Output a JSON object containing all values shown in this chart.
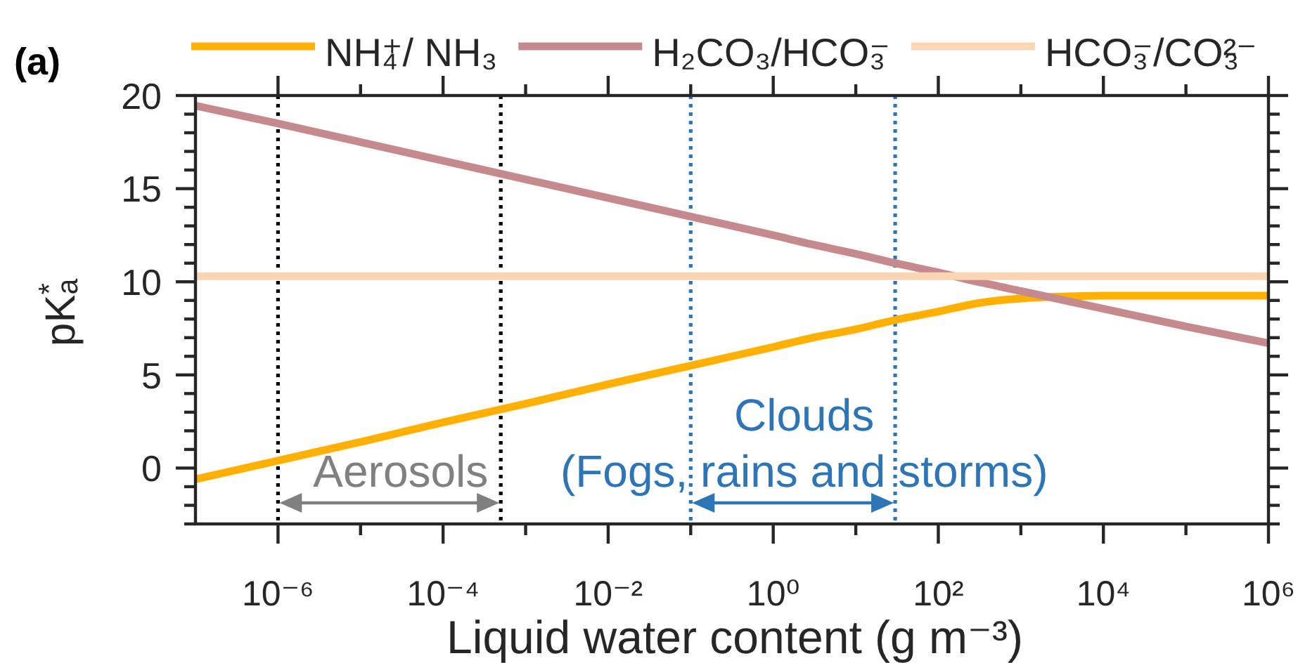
{
  "chart_data": {
    "type": "line",
    "title": "(a)",
    "xlabel": "Liquid water content (g m⁻³)",
    "ylabel": "pKₐ$^{*}$",
    "x": [
      1e-07,
      1e-06,
      1e-05,
      0.0001,
      0.001,
      0.01,
      0.1,
      1,
      3,
      10,
      30,
      100,
      300,
      1000,
      3000,
      10000,
      100000,
      1000000
    ],
    "series": [
      {
        "name": "NH₄⁺/ NH₃",
        "color": "#ffb000",
        "values": [
          -0.6,
          0.4,
          1.4,
          2.45,
          3.45,
          4.5,
          5.5,
          6.5,
          7.0,
          7.45,
          7.95,
          8.4,
          8.85,
          9.1,
          9.2,
          9.25,
          9.25,
          9.25
        ]
      },
      {
        "name": "H₂CO₃/HCO₃⁻",
        "color": "#c48a8e",
        "values": [
          19.45,
          18.5,
          17.5,
          16.5,
          15.5,
          14.5,
          13.5,
          12.5,
          12.0,
          11.5,
          11.0,
          10.5,
          10.0,
          9.5,
          9.05,
          8.55,
          7.6,
          6.7
        ]
      },
      {
        "name": "HCO₃⁻/CO₃²⁻",
        "color": "#fcd5b5",
        "x": [
          1e-07,
          1000000
        ],
        "values": [
          10.3,
          10.3
        ]
      }
    ],
    "log": "x",
    "xlim": [
      1e-07,
      1000000
    ],
    "xticks": [
      {
        "value": 1e-06,
        "label": "10⁻⁶"
      },
      {
        "value": 1e-05,
        "label": null
      },
      {
        "value": 0.0001,
        "label": "10⁻⁴"
      },
      {
        "value": 0.001,
        "label": null
      },
      {
        "value": 0.01,
        "label": "10⁻²"
      },
      {
        "value": 0.1,
        "label": null
      },
      {
        "value": 1,
        "label": "10⁰"
      },
      {
        "value": 10,
        "label": null
      },
      {
        "value": 100,
        "label": "10²"
      },
      {
        "value": 1000,
        "label": null
      },
      {
        "value": 10000,
        "label": "10⁴"
      },
      {
        "value": 100000,
        "label": null
      },
      {
        "value": 1000000,
        "label": "10⁶"
      }
    ],
    "ylim": [
      -3,
      20
    ],
    "yticks": [
      {
        "value": -3,
        "label": null
      },
      {
        "value": -2,
        "label": null
      },
      {
        "value": -1,
        "label": null
      },
      0,
      {
        "value": 1,
        "label": null
      },
      {
        "value": 2,
        "label": null
      },
      {
        "value": 3,
        "label": null
      },
      {
        "value": 4,
        "label": null
      },
      5,
      {
        "value": 6,
        "label": null
      },
      {
        "value": 7,
        "label": null
      },
      {
        "value": 8,
        "label": null
      },
      {
        "value": 9,
        "label": null
      },
      10,
      {
        "value": 11,
        "label": null
      },
      {
        "value": 12,
        "label": null
      },
      {
        "value": 13,
        "label": null
      },
      {
        "value": 14,
        "label": null
      },
      15,
      {
        "value": 16,
        "label": null
      },
      {
        "value": 17,
        "label": null
      },
      {
        "value": 18,
        "label": null
      },
      {
        "value": 19,
        "label": null
      },
      20
    ],
    "legend": "top",
    "ref_lines": [
      {
        "axis": "x",
        "value": 1e-06,
        "color": "#000000",
        "line_style": "dotted"
      },
      {
        "axis": "x",
        "value": 0.0005,
        "color": "#000000",
        "line_style": "dotted"
      },
      {
        "axis": "x",
        "value": 0.1,
        "color": "#2e75b6",
        "line_style": "dotted"
      },
      {
        "axis": "x",
        "value": 30,
        "color": "#2e75b6",
        "line_style": "dotted"
      }
    ],
    "annotations": [
      "Aerosols",
      "Clouds",
      "(Fogs, rains and storms)"
    ]
  }
}
